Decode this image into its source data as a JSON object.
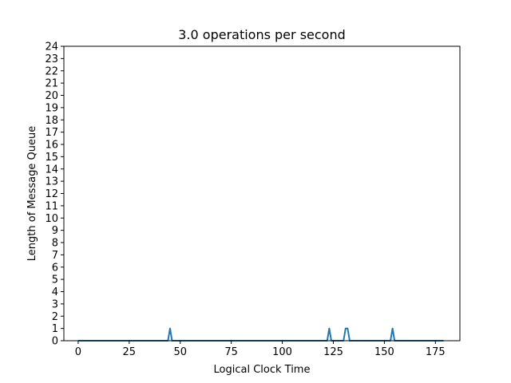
{
  "chart_data": {
    "type": "line",
    "title": "3.0 operations per second",
    "xlabel": "Logical Clock Time",
    "ylabel": "Length of Message Queue",
    "xlim": [
      -7,
      187
    ],
    "ylim": [
      0,
      24
    ],
    "x_ticks": [
      0,
      25,
      50,
      75,
      100,
      125,
      150,
      175
    ],
    "y_ticks": [
      0,
      1,
      2,
      3,
      4,
      5,
      6,
      7,
      8,
      9,
      10,
      11,
      12,
      13,
      14,
      15,
      16,
      17,
      18,
      19,
      20,
      21,
      22,
      23,
      24
    ],
    "grid": false,
    "series": [
      {
        "color": "#1f77b4",
        "x": [
          0,
          44,
          45,
          46,
          122,
          123,
          124,
          130,
          131,
          132,
          133,
          153,
          154,
          155,
          179
        ],
        "y": [
          0,
          0,
          1,
          0,
          0,
          1,
          0,
          0,
          1,
          1,
          0,
          0,
          1,
          0,
          0
        ]
      }
    ]
  }
}
